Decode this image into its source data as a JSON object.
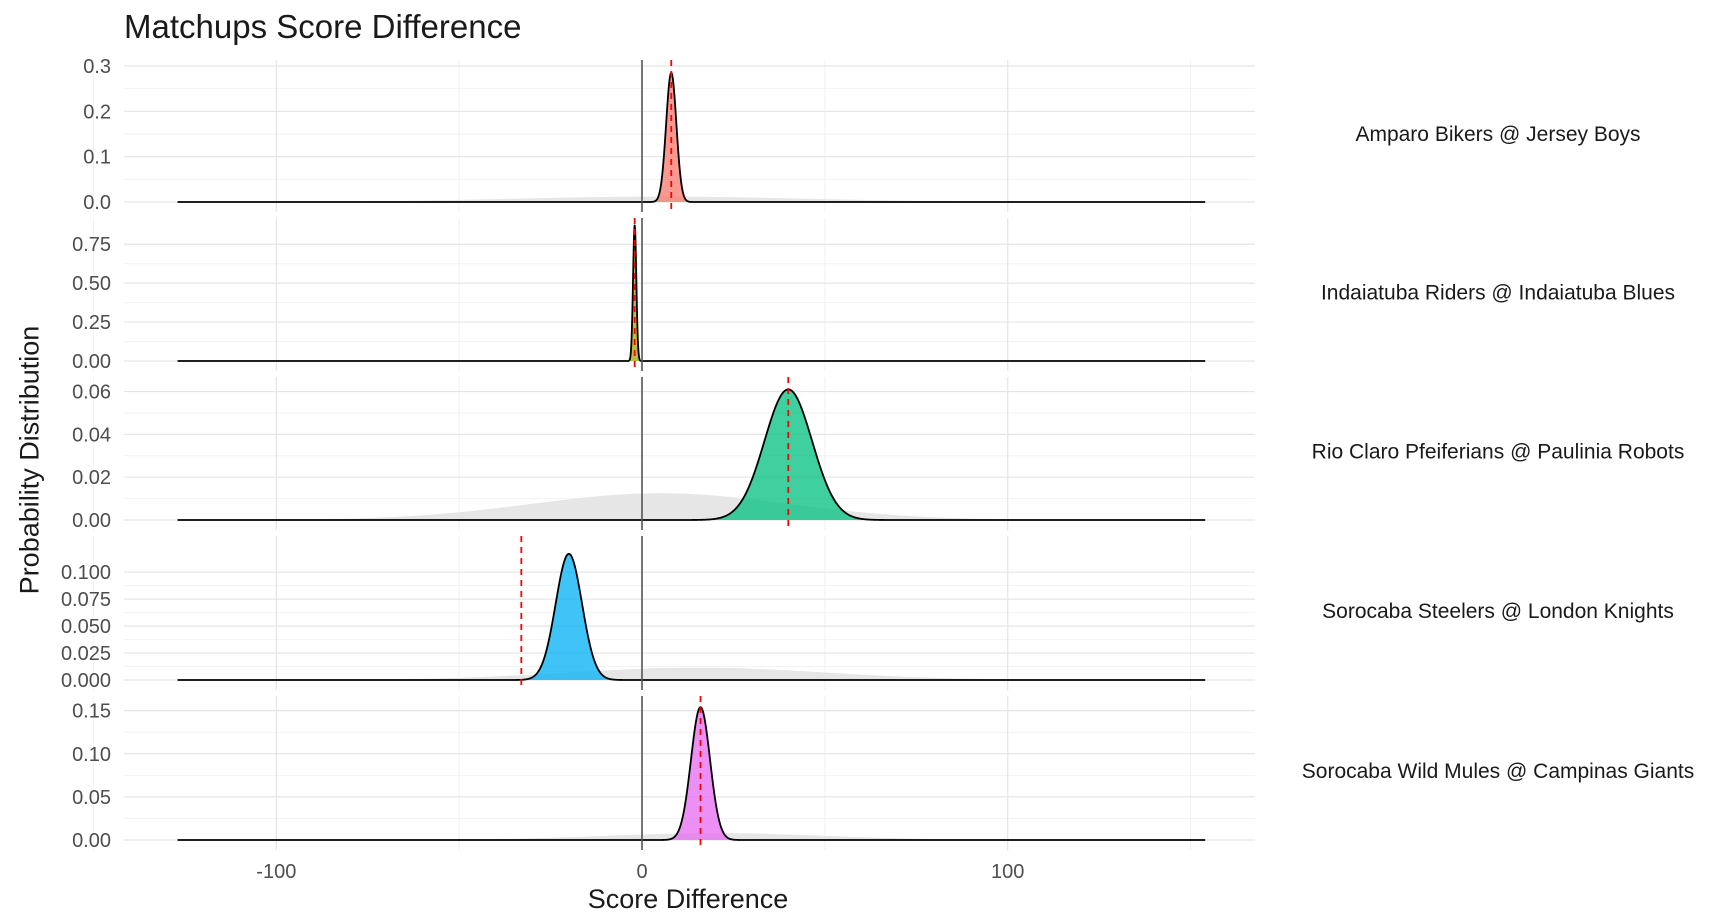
{
  "chart_data": {
    "type": "area",
    "title": "Matchups Score Difference",
    "xlabel": "Score Difference",
    "ylabel": "Probability Distribution",
    "xlim": [
      -140,
      170
    ],
    "x_ticks": [
      -100,
      0,
      100
    ],
    "x_tick_labels": [
      "-100",
      "0",
      "100"
    ],
    "x_reference_line": 0,
    "grid": true,
    "legend": "none",
    "facets": [
      {
        "label": "Amparo Bikers @ Jersey Boys",
        "fill": "#F8766D",
        "ylim": [
          0,
          0.3
        ],
        "y_ticks": [
          0,
          0.1,
          0.2,
          0.3
        ],
        "y_tick_labels": [
          "0.0",
          "0.1",
          "0.2",
          "0.3"
        ],
        "peak_x": 8,
        "sd": 1.4,
        "peak_y": 0.285,
        "actual_score_diff": 8,
        "background": {
          "center": 5,
          "sd": 40,
          "peak": 0.012
        },
        "range": [
          -127,
          154
        ]
      },
      {
        "label": "Indaiatuba Riders @ Indaiatuba Blues",
        "fill": "#A3A500",
        "ylim": [
          0,
          0.88
        ],
        "y_ticks": [
          0,
          0.25,
          0.5,
          0.75
        ],
        "y_tick_labels": [
          "0.00",
          "0.25",
          "0.50",
          "0.75"
        ],
        "peak_x": -2,
        "sd": 0.45,
        "peak_y": 0.87,
        "actual_score_diff": -2,
        "background": {
          "center": 0,
          "sd": 30,
          "peak": 0.0
        },
        "range": [
          -127,
          154
        ]
      },
      {
        "label": "Rio Claro Pfeiferians @ Paulinia Robots",
        "fill": "#00BF7D",
        "ylim": [
          0,
          0.064
        ],
        "y_ticks": [
          0,
          0.02,
          0.04,
          0.06
        ],
        "y_tick_labels": [
          "0.00",
          "0.02",
          "0.04",
          "0.06"
        ],
        "peak_x": 40,
        "sd": 6.5,
        "peak_y": 0.061,
        "actual_score_diff": 40,
        "background": {
          "center": 5,
          "sd": 35,
          "peak": 0.0125
        },
        "range": [
          -127,
          154
        ]
      },
      {
        "label": "Sorocaba Steelers @ London Knights",
        "fill": "#00B0F6",
        "ylim": [
          0,
          0.128
        ],
        "y_ticks": [
          0,
          0.025,
          0.05,
          0.075,
          0.1
        ],
        "y_tick_labels": [
          "0.000",
          "0.025",
          "0.050",
          "0.075",
          "0.100"
        ],
        "peak_x": -20,
        "sd": 3.6,
        "peak_y": 0.117,
        "actual_score_diff": -33,
        "background": {
          "center": 15,
          "sd": 35,
          "peak": 0.0115
        },
        "range": [
          -127,
          154
        ]
      },
      {
        "label": "Sorocaba Wild Mules @ Campinas Giants",
        "fill": "#E76BF3",
        "ylim": [
          0,
          0.16
        ],
        "y_ticks": [
          0,
          0.05,
          0.1,
          0.15
        ],
        "y_tick_labels": [
          "0.00",
          "0.05",
          "0.10",
          "0.15"
        ],
        "peak_x": 16,
        "sd": 2.6,
        "peak_y": 0.154,
        "actual_score_diff": 16,
        "background": {
          "center": 20,
          "sd": 30,
          "peak": 0.008
        },
        "range": [
          -127,
          154
        ]
      }
    ]
  }
}
